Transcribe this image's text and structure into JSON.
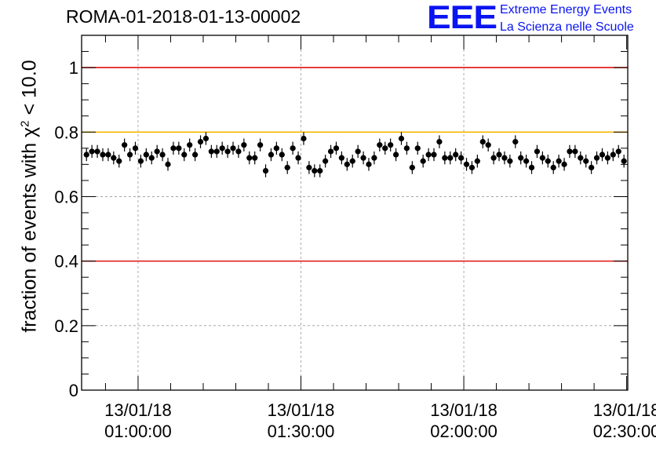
{
  "header": {
    "title": "ROMA-01-2018-01-13-00002",
    "logo_mark": "EEE",
    "logo_line1": "Extreme Energy Events",
    "logo_line2": "La Scienza nelle Scuole"
  },
  "chart_data": {
    "type": "scatter",
    "ylabel_pre": "fraction of events with χ",
    "ylabel_sup": "2",
    "ylabel_post": " < 10.0",
    "xlim": [
      0,
      100.6
    ],
    "ylim": [
      0,
      1.1
    ],
    "yticks": [
      0,
      0.2,
      0.4,
      0.6,
      0.8,
      1
    ],
    "ytick_labels": [
      "0",
      "0.2",
      "0.4",
      "0.6",
      "0.8",
      "1"
    ],
    "xticks": [
      10.4,
      40.4,
      70.4,
      100.4
    ],
    "xtick_labels": [
      [
        "13/01/18",
        "01:00:00"
      ],
      [
        "13/01/18",
        "01:30:00"
      ],
      [
        "13/01/18",
        "02:00:00"
      ],
      [
        "13/01/18",
        "02:30:00"
      ]
    ],
    "grid": true,
    "reference_lines": [
      {
        "y": 1.0,
        "color": "#e01010"
      },
      {
        "y": 0.8,
        "color": "#f5b800"
      },
      {
        "y": 0.4,
        "color": "#e01010"
      }
    ],
    "error": 0.02,
    "series": [
      {
        "x": [
          0.9,
          1.9,
          2.9,
          3.9,
          4.9,
          5.9,
          6.9,
          7.9,
          8.9,
          9.9,
          10.9,
          11.9,
          12.9,
          13.9,
          14.9,
          15.9,
          16.9,
          17.9,
          18.9,
          19.9,
          20.9,
          21.9,
          22.9,
          23.9,
          24.9,
          25.9,
          26.9,
          27.9,
          28.9,
          29.9,
          30.9,
          31.9,
          32.9,
          33.9,
          34.9,
          35.9,
          36.9,
          37.9,
          38.9,
          39.9,
          40.9,
          41.9,
          42.9,
          43.9,
          44.9,
          45.9,
          46.9,
          47.9,
          48.9,
          49.9,
          50.9,
          51.9,
          52.9,
          53.9,
          54.9,
          55.9,
          56.9,
          57.9,
          58.9,
          59.9,
          60.9,
          61.9,
          62.9,
          63.9,
          64.9,
          65.9,
          66.9,
          67.9,
          68.9,
          69.9,
          70.9,
          71.9,
          72.9,
          73.9,
          74.9,
          75.9,
          76.9,
          77.9,
          78.9,
          79.9,
          80.9,
          81.9,
          82.9,
          83.9,
          84.9,
          85.9,
          86.9,
          87.9,
          88.9,
          89.9,
          90.9,
          91.9,
          92.9,
          93.9,
          94.9,
          95.9,
          96.9,
          97.9,
          98.9,
          99.9
        ],
        "y": [
          0.73,
          0.74,
          0.74,
          0.73,
          0.73,
          0.72,
          0.71,
          0.76,
          0.73,
          0.75,
          0.71,
          0.73,
          0.72,
          0.74,
          0.73,
          0.7,
          0.75,
          0.75,
          0.73,
          0.76,
          0.73,
          0.77,
          0.78,
          0.74,
          0.74,
          0.75,
          0.74,
          0.75,
          0.74,
          0.76,
          0.72,
          0.72,
          0.76,
          0.68,
          0.73,
          0.75,
          0.73,
          0.69,
          0.75,
          0.72,
          0.78,
          0.69,
          0.68,
          0.68,
          0.71,
          0.74,
          0.75,
          0.72,
          0.7,
          0.71,
          0.74,
          0.72,
          0.7,
          0.72,
          0.76,
          0.75,
          0.76,
          0.73,
          0.78,
          0.75,
          0.69,
          0.75,
          0.71,
          0.73,
          0.73,
          0.77,
          0.72,
          0.72,
          0.73,
          0.72,
          0.7,
          0.69,
          0.71,
          0.77,
          0.76,
          0.72,
          0.73,
          0.72,
          0.71,
          0.77,
          0.72,
          0.71,
          0.69,
          0.74,
          0.72,
          0.71,
          0.69,
          0.71,
          0.7,
          0.74,
          0.74,
          0.72,
          0.71,
          0.69,
          0.72,
          0.73,
          0.72,
          0.73,
          0.74,
          0.71
        ]
      }
    ]
  }
}
